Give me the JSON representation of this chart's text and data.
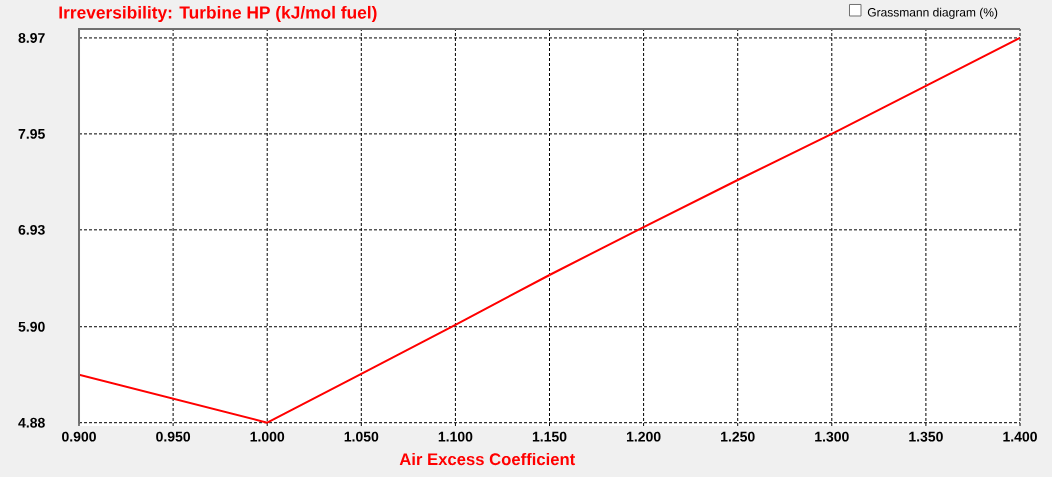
{
  "chart_data": {
    "type": "line",
    "title": "Irreversibility: Turbine HP (kJ/mol fuel)",
    "xlabel": "Air Excess Coefficient",
    "annotations": [
      "Grassmann diagram (%)"
    ],
    "x": [
      0.9,
      1.0,
      1.05,
      1.1,
      1.15,
      1.2,
      1.25,
      1.3,
      1.35,
      1.4
    ],
    "series": [
      {
        "color": "#ff0000",
        "values": [
          5.39,
          4.88,
          5.4,
          5.92,
          6.45,
          6.96,
          7.46,
          7.95,
          8.46,
          8.97
        ]
      }
    ],
    "xlim": [
      0.9,
      1.4
    ],
    "ylim": [
      4.845,
      9.065
    ],
    "xticks": [
      {
        "value": 0.9,
        "label": "0.900"
      },
      {
        "value": 0.95,
        "label": "0.950"
      },
      {
        "value": 1.0,
        "label": "1.000"
      },
      {
        "value": 1.05,
        "label": "1.050"
      },
      {
        "value": 1.1,
        "label": "1.100"
      },
      {
        "value": 1.15,
        "label": "1.150"
      },
      {
        "value": 1.2,
        "label": "1.200"
      },
      {
        "value": 1.25,
        "label": "1.250"
      },
      {
        "value": 1.3,
        "label": "1.300"
      },
      {
        "value": 1.35,
        "label": "1.350"
      },
      {
        "value": 1.4,
        "label": "1.400"
      }
    ],
    "yticks": [
      4.88,
      {
        "value": 5.9,
        "label": "5.90"
      },
      6.93,
      7.95,
      8.97
    ],
    "grid": true,
    "marker": "none",
    "line_style": "solid"
  }
}
